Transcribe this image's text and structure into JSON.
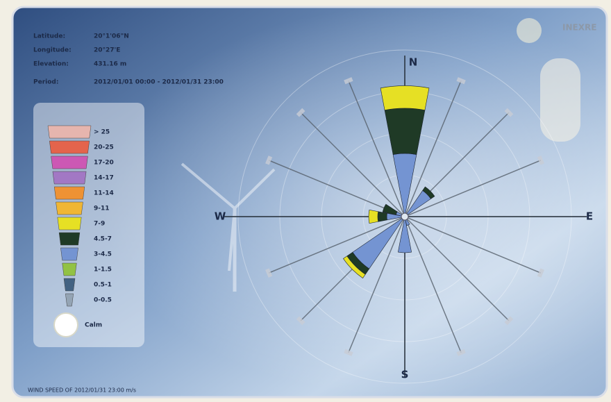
{
  "header": {
    "logo": "INEXRE",
    "info": [
      {
        "label": "Latitude:",
        "value": "20°1'06\"N"
      },
      {
        "label": "Longitude:",
        "value": "20°27'E"
      },
      {
        "label": "Elevation:",
        "value": "431.16 m"
      },
      {
        "label": "Period:",
        "value": "2012/01/01 00:00 - 2012/01/31 23:00"
      }
    ]
  },
  "chart_data": {
    "type": "rose",
    "categories": [
      "N",
      null,
      null,
      null,
      "E",
      null,
      null,
      null,
      "S",
      null,
      null,
      null,
      "W",
      null,
      null,
      null
    ],
    "rlim": [
      0,
      40
    ],
    "calm": "Calm",
    "series": [
      {
        "name": "> 25",
        "color": "#e6b5ae",
        "values": [
          0,
          0,
          0,
          0,
          0,
          0,
          0,
          0,
          0,
          0,
          0,
          0,
          0,
          0,
          0,
          0
        ]
      },
      {
        "name": "20-25",
        "color": "#e4644c",
        "values": [
          0,
          0,
          0,
          0,
          0,
          0,
          0,
          0,
          0,
          0,
          0,
          0,
          0,
          0,
          0,
          0
        ]
      },
      {
        "name": "17-20",
        "color": "#cc58b4",
        "values": [
          0,
          0,
          0,
          0,
          0,
          0,
          0,
          0,
          0,
          0,
          0,
          0,
          0,
          0,
          0,
          0
        ]
      },
      {
        "name": "14-17",
        "color": "#a278c4",
        "values": [
          0,
          0,
          0,
          0,
          0,
          0,
          0,
          0,
          0,
          0,
          0,
          0,
          0,
          0,
          0,
          0
        ]
      },
      {
        "name": "11-14",
        "color": "#ee9234",
        "values": [
          0,
          0,
          0,
          0,
          0,
          0,
          0,
          0,
          0,
          0,
          0,
          0,
          0,
          0,
          0,
          0
        ]
      },
      {
        "name": "9-11",
        "color": "#f0b634",
        "values": [
          0,
          0,
          0,
          0,
          0,
          0,
          0,
          0,
          0,
          0,
          0,
          0,
          0,
          0,
          0,
          0
        ]
      },
      {
        "name": "7-9",
        "color": "#e6e024",
        "values": [
          5,
          0,
          0,
          0,
          0,
          0,
          0,
          0,
          0,
          0,
          1,
          0,
          2,
          0,
          0,
          0
        ]
      },
      {
        "name": "4.5-7",
        "color": "#1f3a26",
        "values": [
          10,
          0,
          1,
          0,
          0,
          0,
          0,
          0,
          0,
          0,
          1.5,
          0,
          2,
          3,
          0,
          0
        ]
      },
      {
        "name": "3-4.5",
        "color": "#7494d2",
        "values": [
          14,
          0,
          7,
          0,
          0,
          0,
          0,
          2,
          8,
          0,
          14,
          0,
          4,
          2,
          0,
          0
        ]
      },
      {
        "name": "1-1.5",
        "color": "#92c244",
        "values": [
          0,
          0,
          0,
          0,
          0,
          0,
          0,
          0,
          0,
          0,
          0,
          0,
          0,
          0,
          0,
          0
        ]
      },
      {
        "name": "0.5-1",
        "color": "#426282",
        "values": [
          0,
          0,
          0,
          0,
          0,
          0,
          0,
          0,
          0,
          0,
          0,
          0,
          0,
          0,
          0,
          0
        ]
      },
      {
        "name": "0-0.5",
        "color": "#94a4b4",
        "values": [
          0,
          0,
          0,
          0,
          0,
          0,
          0,
          0,
          0,
          0,
          0,
          0,
          0,
          0,
          0,
          0
        ]
      }
    ]
  },
  "footer": {
    "text": "WIND SPEED OF 2012/01/31 23:00 m/s"
  }
}
